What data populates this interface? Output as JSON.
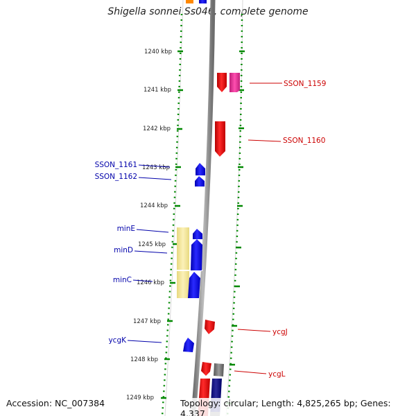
{
  "title": "Shigella sonnei Ss046, complete genome",
  "footer": {
    "accession": "Accession: NC_007384",
    "topology": "Topology: circular; Length: 4,825,265 bp; Genes: 4,337"
  },
  "ticks": [
    {
      "label": "1240 kbp"
    },
    {
      "label": "1241 kbp"
    },
    {
      "label": "1242 kbp"
    },
    {
      "label": "1243 kbp"
    },
    {
      "label": "1244 kbp"
    },
    {
      "label": "1245 kbp"
    },
    {
      "label": "1246 kbp"
    },
    {
      "label": "1247 kbp"
    },
    {
      "label": "1248 kbp"
    },
    {
      "label": "1249 kbp"
    }
  ],
  "genes_forward": [
    {
      "label": "SSON_1159"
    },
    {
      "label": "SSON_1160"
    },
    {
      "label": "ycgJ"
    },
    {
      "label": "ycgL"
    }
  ],
  "genes_reverse": [
    {
      "label": "SSON_1161"
    },
    {
      "label": "SSON_1162"
    },
    {
      "label": "minE"
    },
    {
      "label": "minD"
    },
    {
      "label": "minC"
    },
    {
      "label": "ycgK"
    }
  ],
  "colors": {
    "forward_strand": "#ee0000",
    "reverse_strand": "#0000ee",
    "forward_label": "#cc0000",
    "reverse_label": "#0000aa",
    "ruler": "#008800",
    "backbone": "#888888",
    "highlight": "#f3e7a2",
    "accent": "#ee3399"
  }
}
